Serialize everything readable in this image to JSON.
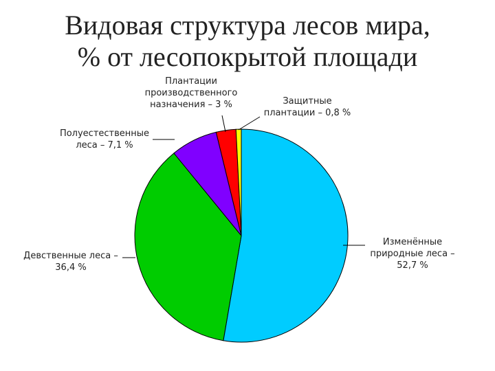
{
  "title_line1": "Видовая структура лесов мира,",
  "title_line2": "% от лесопокрытой площади",
  "chart_data": {
    "type": "pie",
    "title": "Видовая структура лесов мира, % от лесопокрытой площади",
    "slices": [
      {
        "label": "Изменённые\nприродные леса –\n52,7 %",
        "value": 52.7,
        "color": "#00CCFF"
      },
      {
        "label": "Девственные леса –\n36,4 %",
        "value": 36.4,
        "color": "#00CC00"
      },
      {
        "label": "Полуестественные\nлеса – 7,1 %",
        "value": 7.1,
        "color": "#8000FF"
      },
      {
        "label": "Плантации\nпроизводственного\nназначения – 3 %",
        "value": 3,
        "color": "#FF0000"
      },
      {
        "label": "Защитные\nплантации – 0,8 %",
        "value": 0.8,
        "color": "#FFFF00"
      }
    ]
  }
}
